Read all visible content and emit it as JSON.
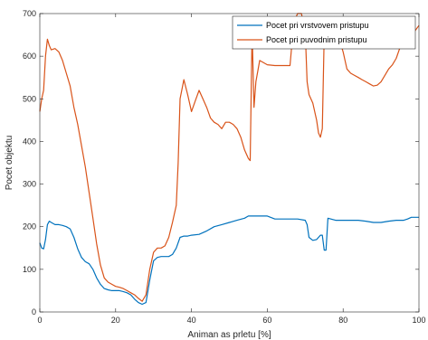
{
  "chart_data": {
    "type": "line",
    "title": "",
    "xlabel": "Animan as prletu [%]",
    "ylabel": "Pocet objektu",
    "xlim": [
      0,
      100
    ],
    "ylim": [
      0,
      700
    ],
    "xticks": [
      "0",
      "20",
      "40",
      "60",
      "80",
      "100"
    ],
    "yticks": [
      "0",
      "100",
      "200",
      "300",
      "400",
      "500",
      "600",
      "700"
    ],
    "grid": false,
    "legend_position": "top-right",
    "series": [
      {
        "name": "Pocet pri vrstvovem pristupu",
        "color": "#0072BD",
        "x": [
          0,
          0.5,
          1,
          1.5,
          2,
          2.5,
          3,
          4,
          5,
          6,
          7,
          8,
          9,
          10,
          11,
          12,
          13,
          14,
          15,
          16,
          17,
          18,
          19,
          20,
          21,
          22,
          23,
          24,
          25,
          26,
          27,
          28,
          29,
          30,
          31,
          32,
          33,
          34,
          35,
          36,
          37,
          38,
          39,
          40,
          42,
          44,
          46,
          48,
          50,
          52,
          54,
          55,
          56,
          58,
          60,
          62,
          64,
          66,
          68,
          70,
          70.5,
          71,
          72,
          73,
          74,
          74.5,
          75,
          75.5,
          76,
          78,
          80,
          82,
          84,
          86,
          88,
          90,
          92,
          94,
          96,
          97,
          98,
          99,
          100
        ],
        "y": [
          162,
          150,
          148,
          170,
          205,
          213,
          210,
          205,
          205,
          203,
          200,
          195,
          175,
          148,
          128,
          118,
          113,
          100,
          80,
          65,
          55,
          52,
          50,
          50,
          50,
          48,
          45,
          40,
          30,
          22,
          18,
          22,
          75,
          120,
          128,
          130,
          130,
          130,
          135,
          150,
          175,
          178,
          178,
          180,
          182,
          190,
          200,
          205,
          210,
          215,
          220,
          225,
          225,
          225,
          225,
          218,
          218,
          218,
          218,
          215,
          205,
          175,
          168,
          170,
          180,
          180,
          145,
          145,
          220,
          215,
          215,
          215,
          215,
          213,
          210,
          210,
          213,
          215,
          215,
          218,
          222,
          222,
          222
        ]
      },
      {
        "name": "Pocet pri puvodnim pristupu",
        "color": "#D95319",
        "x": [
          0,
          0.5,
          1,
          1.5,
          2,
          2.5,
          3,
          4,
          5,
          6,
          7,
          8,
          9,
          10,
          11,
          12,
          13,
          14,
          15,
          16,
          17,
          18,
          19,
          20,
          21,
          22,
          23,
          24,
          25,
          26,
          27,
          28,
          29,
          30,
          31,
          32,
          33,
          34,
          35,
          36,
          36.5,
          37,
          38,
          39,
          40,
          41,
          42,
          43,
          44,
          45,
          46,
          47,
          48,
          49,
          50,
          51,
          52,
          53,
          54,
          55,
          55.5,
          56,
          56.5,
          57,
          58,
          60,
          62,
          64,
          66,
          67,
          68,
          69,
          70,
          70.5,
          71,
          72,
          73,
          73.5,
          74,
          74.5,
          75,
          75.5,
          76,
          77,
          78,
          79,
          80,
          81,
          82,
          83,
          84,
          85,
          86,
          87,
          88,
          89,
          90,
          91,
          92,
          93,
          94,
          95,
          96,
          97,
          98,
          99,
          100
        ],
        "y": [
          470,
          500,
          520,
          600,
          640,
          625,
          615,
          618,
          610,
          590,
          560,
          530,
          480,
          440,
          390,
          340,
          280,
          220,
          160,
          110,
          80,
          70,
          65,
          60,
          58,
          55,
          50,
          45,
          40,
          32,
          25,
          40,
          100,
          140,
          150,
          150,
          155,
          175,
          210,
          250,
          350,
          500,
          545,
          510,
          470,
          495,
          520,
          500,
          480,
          455,
          445,
          440,
          430,
          445,
          445,
          440,
          430,
          410,
          380,
          360,
          355,
          660,
          480,
          540,
          590,
          580,
          578,
          578,
          578,
          680,
          700,
          700,
          660,
          540,
          510,
          490,
          450,
          420,
          410,
          430,
          650,
          665,
          660,
          655,
          648,
          640,
          610,
          570,
          560,
          555,
          550,
          545,
          540,
          535,
          530,
          532,
          540,
          555,
          570,
          580,
          595,
          620,
          630,
          630,
          640,
          660,
          672
        ]
      }
    ]
  }
}
